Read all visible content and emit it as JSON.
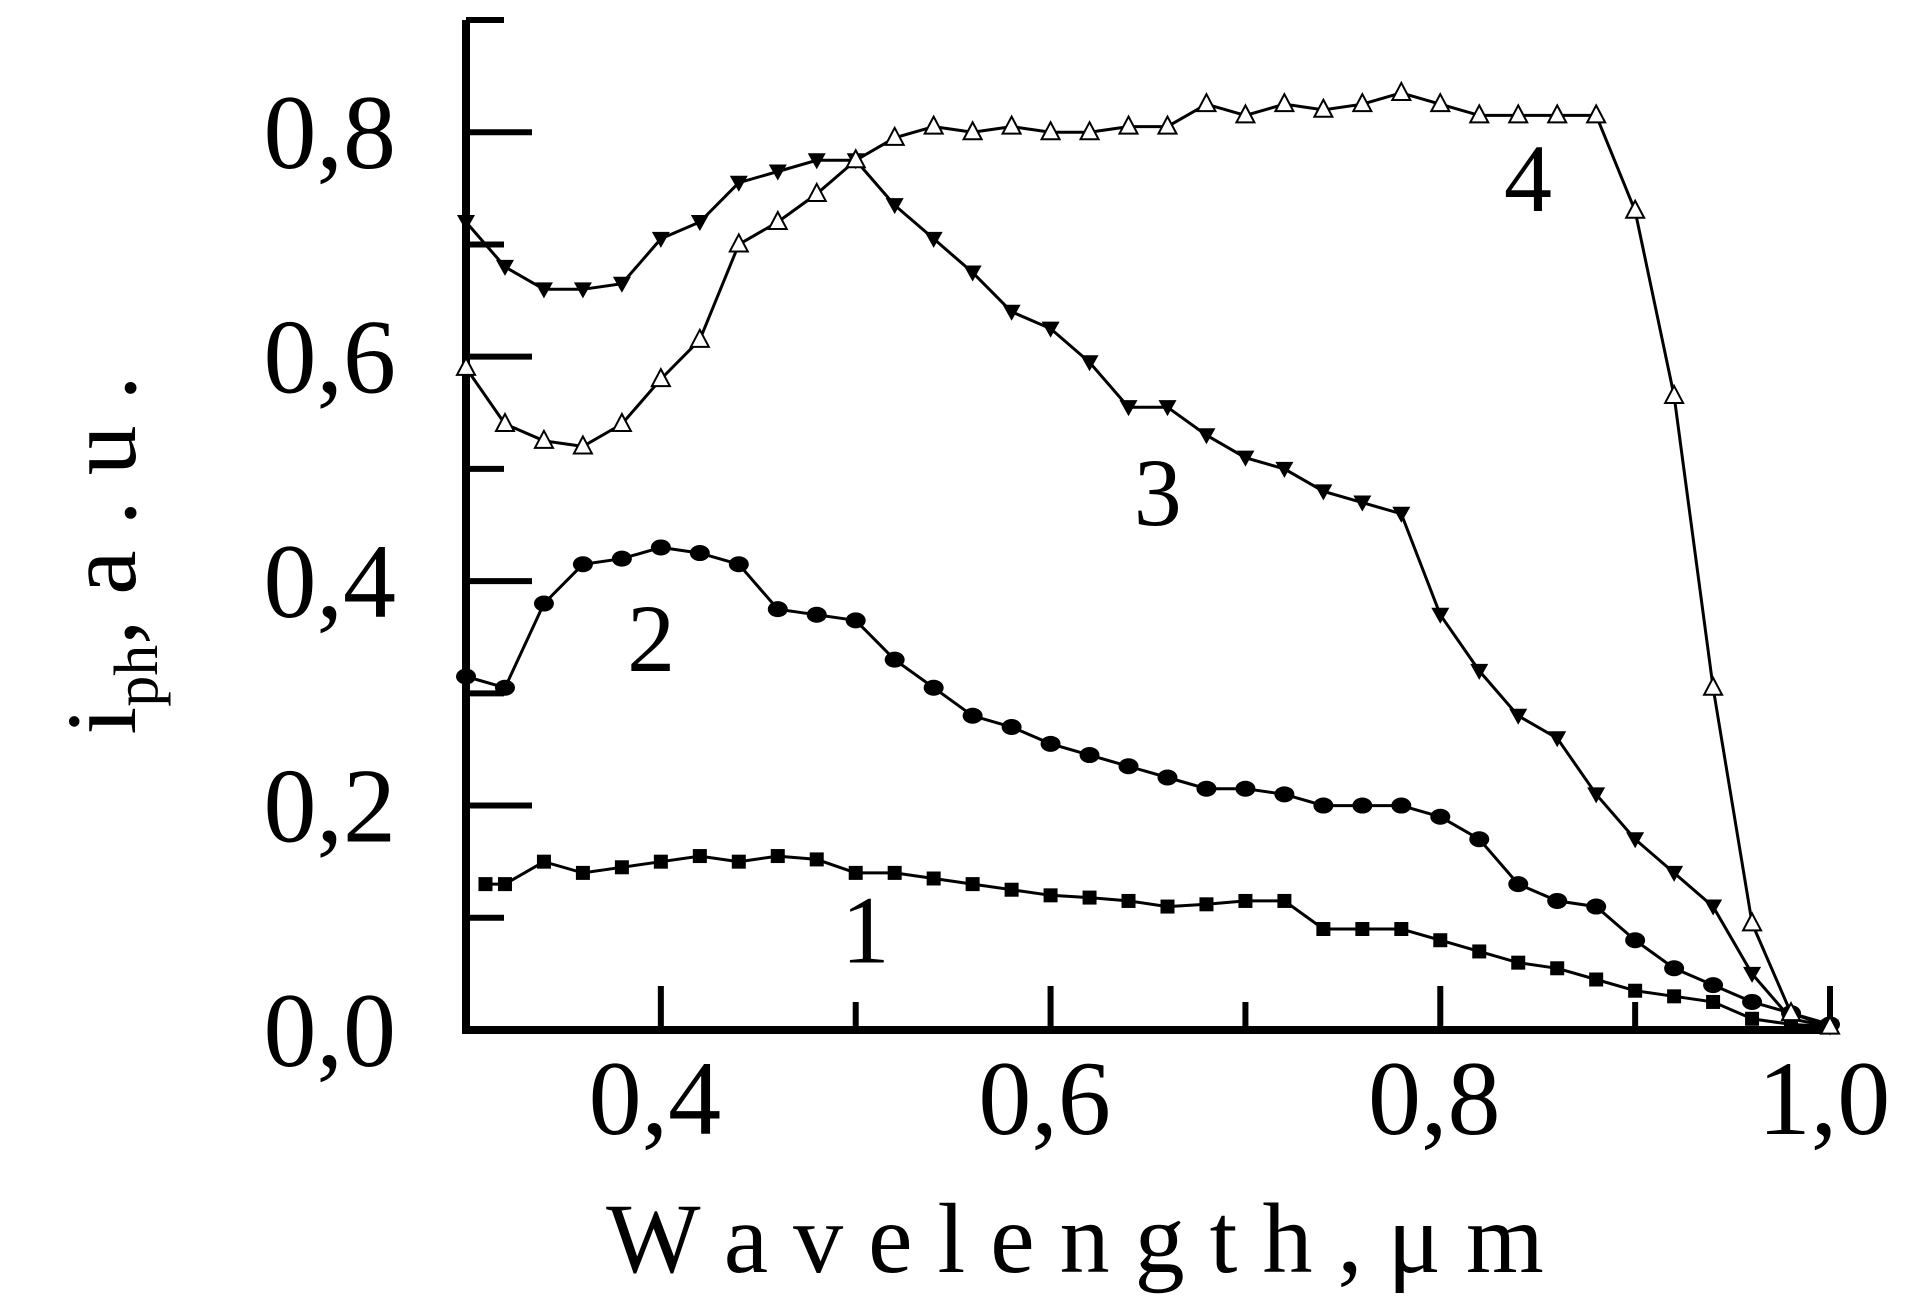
{
  "chart_data": {
    "type": "line",
    "xlabel": "W a v e l e n g t h , μ m",
    "ylabel_main": "i",
    "ylabel_sub": "ph",
    "ylabel_rest": ", a . u .",
    "xlim": [
      0.3,
      1.0
    ],
    "ylim": [
      0.0,
      0.9
    ],
    "x_ticks": [
      {
        "value": 0.4,
        "label": "0,4"
      },
      {
        "value": 0.6,
        "label": "0,6"
      },
      {
        "value": 0.8,
        "label": "0,8"
      },
      {
        "value": 1.0,
        "label": "1,0"
      }
    ],
    "x_minor_ticks": [
      0.5,
      0.7,
      0.9
    ],
    "y_ticks": [
      {
        "value": 0.0,
        "label": "0,0"
      },
      {
        "value": 0.2,
        "label": "0,2"
      },
      {
        "value": 0.4,
        "label": "0,4"
      },
      {
        "value": 0.6,
        "label": "0,6"
      },
      {
        "value": 0.8,
        "label": "0,8"
      }
    ],
    "y_minor_ticks": [
      0.1,
      0.3,
      0.5,
      0.7,
      0.9
    ],
    "series": [
      {
        "name": "1",
        "marker": "square",
        "color": "#000000",
        "label_pos": [
          0.505,
          0.06
        ],
        "x": [
          0.31,
          0.32,
          0.34,
          0.36,
          0.38,
          0.4,
          0.42,
          0.44,
          0.46,
          0.48,
          0.5,
          0.52,
          0.54,
          0.56,
          0.58,
          0.6,
          0.62,
          0.64,
          0.66,
          0.68,
          0.7,
          0.72,
          0.74,
          0.76,
          0.78,
          0.8,
          0.82,
          0.84,
          0.86,
          0.88,
          0.9,
          0.92,
          0.94,
          0.96,
          0.98,
          1.0
        ],
        "y": [
          0.13,
          0.13,
          0.15,
          0.14,
          0.145,
          0.15,
          0.155,
          0.15,
          0.155,
          0.152,
          0.14,
          0.14,
          0.135,
          0.13,
          0.125,
          0.12,
          0.118,
          0.115,
          0.11,
          0.112,
          0.115,
          0.115,
          0.09,
          0.09,
          0.09,
          0.08,
          0.07,
          0.06,
          0.055,
          0.045,
          0.035,
          0.03,
          0.025,
          0.01,
          0.005,
          0.003
        ]
      },
      {
        "name": "2",
        "marker": "circle",
        "color": "#000000",
        "label_pos": [
          0.395,
          0.32
        ],
        "x": [
          0.3,
          0.32,
          0.34,
          0.36,
          0.38,
          0.4,
          0.42,
          0.44,
          0.46,
          0.48,
          0.5,
          0.52,
          0.54,
          0.56,
          0.58,
          0.6,
          0.62,
          0.64,
          0.66,
          0.68,
          0.7,
          0.72,
          0.74,
          0.76,
          0.78,
          0.8,
          0.82,
          0.84,
          0.86,
          0.88,
          0.9,
          0.92,
          0.94,
          0.96,
          0.98,
          1.0
        ],
        "y": [
          0.315,
          0.305,
          0.38,
          0.415,
          0.42,
          0.43,
          0.425,
          0.415,
          0.375,
          0.37,
          0.365,
          0.33,
          0.305,
          0.28,
          0.27,
          0.255,
          0.245,
          0.235,
          0.225,
          0.215,
          0.215,
          0.21,
          0.2,
          0.2,
          0.2,
          0.19,
          0.17,
          0.13,
          0.115,
          0.11,
          0.08,
          0.055,
          0.04,
          0.025,
          0.015,
          0.005
        ]
      },
      {
        "name": "3",
        "marker": "triangle-down",
        "color": "#000000",
        "label_pos": [
          0.655,
          0.45
        ],
        "x": [
          0.3,
          0.32,
          0.34,
          0.36,
          0.38,
          0.4,
          0.42,
          0.44,
          0.46,
          0.48,
          0.5,
          0.52,
          0.54,
          0.56,
          0.58,
          0.6,
          0.62,
          0.64,
          0.66,
          0.68,
          0.7,
          0.72,
          0.74,
          0.76,
          0.78,
          0.8,
          0.82,
          0.84,
          0.86,
          0.88,
          0.9,
          0.92,
          0.94,
          0.96,
          0.98,
          1.0
        ],
        "y": [
          0.72,
          0.68,
          0.66,
          0.66,
          0.665,
          0.705,
          0.72,
          0.755,
          0.765,
          0.775,
          0.775,
          0.735,
          0.705,
          0.675,
          0.64,
          0.625,
          0.595,
          0.555,
          0.555,
          0.53,
          0.51,
          0.5,
          0.48,
          0.47,
          0.46,
          0.37,
          0.32,
          0.28,
          0.26,
          0.21,
          0.17,
          0.14,
          0.11,
          0.05,
          0.01,
          0.003
        ]
      },
      {
        "name": "4",
        "marker": "triangle-up-open",
        "color": "#000000",
        "label_pos": [
          0.845,
          0.73
        ],
        "x": [
          0.3,
          0.32,
          0.34,
          0.36,
          0.38,
          0.4,
          0.42,
          0.44,
          0.46,
          0.48,
          0.5,
          0.52,
          0.54,
          0.56,
          0.58,
          0.6,
          0.62,
          0.64,
          0.66,
          0.68,
          0.7,
          0.72,
          0.74,
          0.76,
          0.78,
          0.8,
          0.82,
          0.84,
          0.86,
          0.88,
          0.9,
          0.92,
          0.94,
          0.96,
          0.98,
          1.0
        ],
        "y": [
          0.59,
          0.54,
          0.525,
          0.52,
          0.54,
          0.58,
          0.615,
          0.7,
          0.72,
          0.745,
          0.775,
          0.795,
          0.805,
          0.8,
          0.805,
          0.8,
          0.8,
          0.805,
          0.805,
          0.825,
          0.815,
          0.825,
          0.82,
          0.825,
          0.835,
          0.825,
          0.815,
          0.815,
          0.815,
          0.815,
          0.73,
          0.565,
          0.305,
          0.095,
          0.015,
          0.003
        ]
      }
    ]
  }
}
